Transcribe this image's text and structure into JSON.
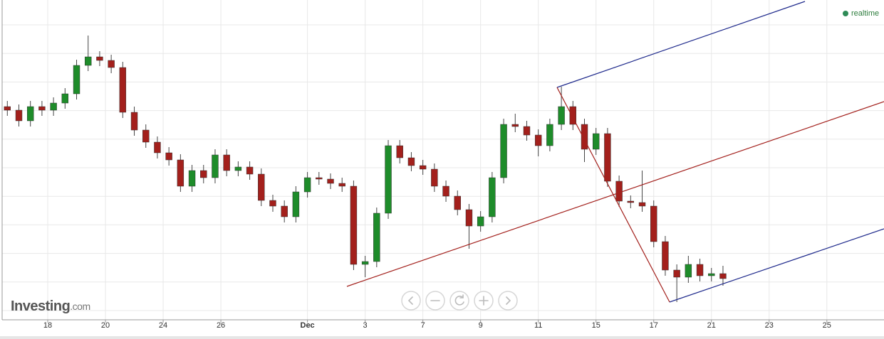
{
  "status": "realtime",
  "logo": {
    "name": "Investing",
    "suffix": ".com"
  },
  "chart_data": {
    "type": "candlestick",
    "x": [
      -7,
      -5,
      -3,
      -1,
      1,
      3,
      5,
      7,
      9,
      11,
      13,
      15,
      17,
      19,
      21,
      23,
      25,
      27,
      29,
      31,
      33,
      35,
      37,
      39,
      41,
      43,
      45,
      47,
      49,
      51,
      53,
      55,
      57,
      59,
      61,
      63,
      65,
      67,
      69,
      71,
      73,
      75,
      77,
      79,
      81,
      83,
      85,
      87,
      89,
      91,
      93,
      95,
      97,
      99,
      101,
      103,
      105,
      107,
      109,
      111,
      113,
      115,
      117
    ],
    "open": [
      300,
      295,
      280,
      300,
      295,
      305,
      318,
      358,
      370,
      365,
      355,
      292,
      267,
      250,
      235,
      225,
      188,
      210,
      200,
      232,
      210,
      215,
      205,
      168,
      160,
      145,
      180,
      200,
      198,
      192,
      188,
      78,
      82,
      150,
      245,
      228,
      217,
      212,
      188,
      174,
      155,
      132,
      145,
      200,
      275,
      272,
      260,
      245,
      275,
      300,
      275,
      240,
      262,
      195,
      167,
      165,
      160,
      110,
      70,
      60,
      78,
      62,
      65
    ],
    "high": [
      308,
      303,
      308,
      308,
      313,
      326,
      366,
      400,
      378,
      373,
      363,
      300,
      275,
      258,
      243,
      233,
      218,
      218,
      240,
      240,
      223,
      223,
      213,
      176,
      168,
      188,
      208,
      208,
      206,
      200,
      196,
      90,
      158,
      253,
      253,
      236,
      225,
      220,
      196,
      182,
      163,
      153,
      208,
      283,
      290,
      280,
      268,
      283,
      328,
      308,
      283,
      270,
      270,
      203,
      175,
      210,
      168,
      118,
      78,
      90,
      86,
      73,
      76
    ],
    "low": [
      287,
      272,
      272,
      287,
      287,
      297,
      310,
      350,
      357,
      347,
      284,
      259,
      242,
      227,
      217,
      180,
      180,
      192,
      192,
      202,
      202,
      197,
      160,
      152,
      137,
      137,
      172,
      190,
      184,
      180,
      70,
      60,
      74,
      142,
      220,
      209,
      204,
      180,
      166,
      147,
      100,
      124,
      137,
      192,
      264,
      252,
      230,
      237,
      267,
      267,
      222,
      232,
      187,
      159,
      157,
      152,
      102,
      62,
      25,
      52,
      54,
      54,
      48
    ],
    "close": [
      295,
      280,
      300,
      295,
      305,
      318,
      358,
      370,
      365,
      355,
      292,
      267,
      250,
      235,
      225,
      188,
      210,
      200,
      232,
      210,
      215,
      205,
      168,
      160,
      145,
      180,
      200,
      198,
      192,
      188,
      78,
      82,
      150,
      245,
      228,
      217,
      212,
      188,
      174,
      155,
      132,
      145,
      200,
      275,
      272,
      260,
      245,
      275,
      300,
      275,
      240,
      262,
      195,
      167,
      165,
      160,
      110,
      70,
      60,
      78,
      62,
      65,
      58
    ],
    "up_color": "#1e8c2a",
    "down_color": "#a3201c",
    "xlim": [
      -7.9,
      144.9
    ],
    "ylim": [
      0,
      450
    ],
    "xticks": [
      {
        "value": 0,
        "label": "18"
      },
      {
        "value": 10,
        "label": "20"
      },
      {
        "value": 20,
        "label": "24"
      },
      {
        "value": 30,
        "label": "26"
      },
      {
        "value": 45,
        "label": "Dec"
      },
      {
        "value": 55,
        "label": "3"
      },
      {
        "value": 65,
        "label": "7"
      },
      {
        "value": 75,
        "label": "9"
      },
      {
        "value": 85,
        "label": "11"
      },
      {
        "value": 95,
        "label": "15"
      },
      {
        "value": 105,
        "label": "17"
      },
      {
        "value": 115,
        "label": "21"
      },
      {
        "value": 125,
        "label": "23"
      },
      {
        "value": 135,
        "label": "25"
      }
    ],
    "grid": true
  }
}
